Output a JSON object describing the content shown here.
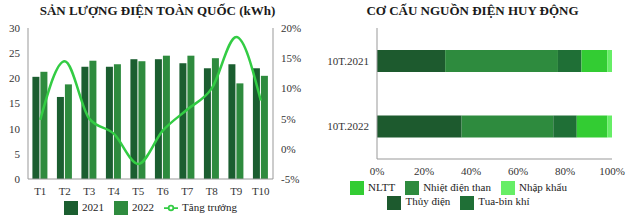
{
  "chart_data": [
    {
      "type": "bar",
      "title": "SẢN LƯỢNG ĐIỆN TOÀN QUỐC (kWh)",
      "categories": [
        "T1",
        "T2",
        "T3",
        "T4",
        "T5",
        "T6",
        "T7",
        "T8",
        "T9",
        "T10"
      ],
      "series": [
        {
          "name": "2021",
          "color": "#1b5e30",
          "values": [
            20.3,
            16.3,
            22.3,
            22.3,
            23.8,
            23.8,
            23.0,
            22.0,
            22.8,
            22.0
          ]
        },
        {
          "name": "2022",
          "color": "#2e8b3e",
          "values": [
            21.3,
            18.8,
            23.5,
            22.8,
            23.4,
            24.5,
            24.5,
            24.0,
            19.0,
            20.5
          ]
        },
        {
          "name": "Tăng trưởng",
          "type": "line",
          "axis": "y2",
          "color": "#33cc44",
          "values": [
            4.8,
            14.5,
            5.0,
            2.5,
            -2.5,
            3.0,
            6.5,
            10.0,
            18.5,
            8.0
          ]
        }
      ],
      "ylim": [
        0,
        30
      ],
      "yticks": [
        0,
        5,
        10,
        15,
        20,
        25,
        30
      ],
      "y2lim": [
        -5,
        20
      ],
      "y2ticks": [
        {
          "value": -5,
          "label": "-5%"
        },
        {
          "value": 0,
          "label": "0%"
        },
        {
          "value": 5,
          "label": "5%"
        },
        {
          "value": 10,
          "label": "10%"
        },
        {
          "value": 15,
          "label": "15%"
        },
        {
          "value": 20,
          "label": "20%"
        }
      ],
      "grid": false,
      "legend": "bottom"
    },
    {
      "type": "bar",
      "title": "CƠ CẤU NGUỒN ĐIỆN HUY ĐỘNG",
      "orientation": "horizontal",
      "stacked": true,
      "categories": [
        "10T.2021",
        "10T.2022"
      ],
      "series": [
        {
          "name": "Thủy điện",
          "color": "#1d5a2e",
          "values": [
            29,
            36
          ]
        },
        {
          "name": "Nhiệt điện than",
          "color": "#2e8b3e",
          "values": [
            48,
            39
          ]
        },
        {
          "name": "Tua-bin khí",
          "color": "#1f6f36",
          "values": [
            10,
            10
          ]
        },
        {
          "name": "NLTT",
          "color": "#33cc33",
          "values": [
            11,
            13
          ]
        },
        {
          "name": "Nhập khẩu",
          "color": "#66ee66",
          "values": [
            2,
            2
          ]
        }
      ],
      "xlim": [
        0,
        100
      ],
      "xticks": [
        {
          "value": 0,
          "label": "0%"
        },
        {
          "value": 20,
          "label": "20%"
        },
        {
          "value": 40,
          "label": "40%"
        },
        {
          "value": 60,
          "label": "60%"
        },
        {
          "value": 80,
          "label": "80%"
        },
        {
          "value": 100,
          "label": "100%"
        }
      ],
      "grid": false,
      "legend": "bottom"
    }
  ]
}
